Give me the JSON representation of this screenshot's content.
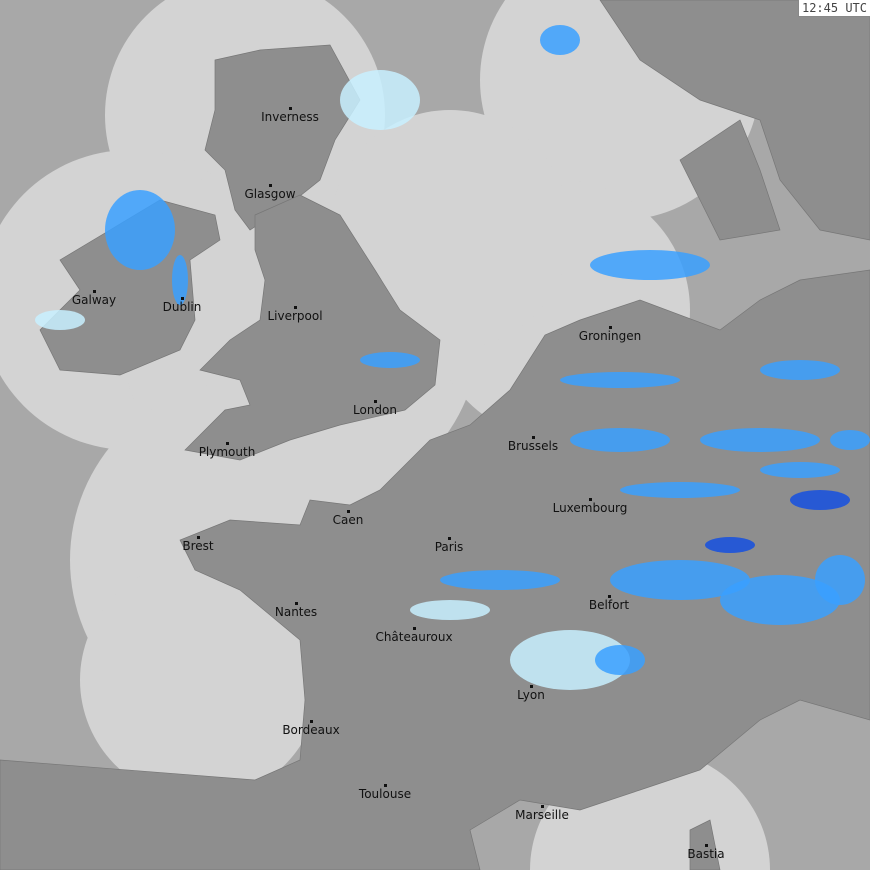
{
  "timestamp": "12:45 UTC",
  "colors": {
    "sea": "#a8a8a8",
    "coverage": "#d3d3d3",
    "land": "#8e8e8e",
    "rain_light": "#c8f0ff",
    "rain_mid": "#3aa0ff",
    "rain_heavy": "#1550e0"
  },
  "cities": [
    {
      "name": "Inverness"
    },
    {
      "name": "Glasgow"
    },
    {
      "name": "Galway"
    },
    {
      "name": "Dublin"
    },
    {
      "name": "Liverpool"
    },
    {
      "name": "London"
    },
    {
      "name": "Plymouth"
    },
    {
      "name": "Groningen"
    },
    {
      "name": "Brussels"
    },
    {
      "name": "Caen"
    },
    {
      "name": "Paris"
    },
    {
      "name": "Luxembourg"
    },
    {
      "name": "Brest"
    },
    {
      "name": "Nantes"
    },
    {
      "name": "Belfort"
    },
    {
      "name": "Châteauroux"
    },
    {
      "name": "Lyon"
    },
    {
      "name": "Bordeaux"
    },
    {
      "name": "Toulouse"
    },
    {
      "name": "Marseille"
    },
    {
      "name": "Bastia"
    }
  ]
}
